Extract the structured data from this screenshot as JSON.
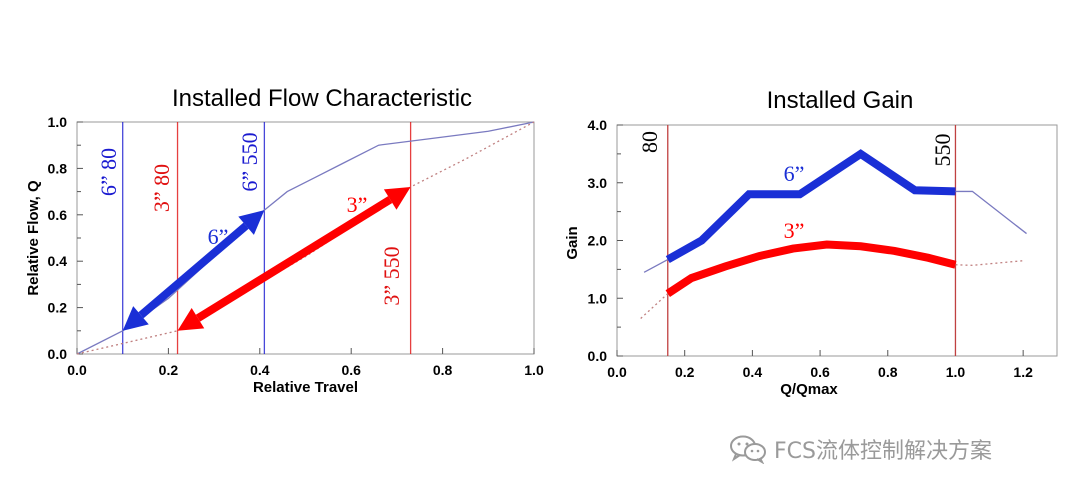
{
  "chart_data": [
    {
      "type": "line",
      "title": "Installed Flow Characteristic",
      "xlabel": "Relative Travel",
      "ylabel": "Relative Flow, Q",
      "xlim": [
        0.0,
        1.0
      ],
      "ylim": [
        0.0,
        1.0
      ],
      "x_ticks": [
        "0.0",
        "0.2",
        "0.4",
        "0.6",
        "0.8",
        "1.0"
      ],
      "y_ticks": [
        "0.0",
        "0.2",
        "0.4",
        "0.6",
        "0.8",
        "1.0"
      ],
      "series": [
        {
          "name": "6”",
          "color": "#7a7ac0",
          "style": "solid",
          "x": [
            0,
            0.1,
            0.2,
            0.3,
            0.41,
            0.46,
            0.52,
            0.58,
            0.66,
            0.78,
            0.9,
            1.0
          ],
          "y": [
            0,
            0.1,
            0.24,
            0.42,
            0.62,
            0.7,
            0.76,
            0.82,
            0.9,
            0.93,
            0.96,
            1.0
          ]
        },
        {
          "name": "3”",
          "color": "#c08080",
          "style": "dotted",
          "x": [
            0,
            0.22,
            0.35,
            0.5,
            0.6,
            0.73,
            0.85,
            1.0
          ],
          "y": [
            0,
            0.1,
            0.25,
            0.42,
            0.55,
            0.72,
            0.84,
            1.0
          ]
        }
      ],
      "vlines": [
        {
          "x": 0.1,
          "label": "6” 80",
          "color": "#1a1ad0",
          "label_pos": "top"
        },
        {
          "x": 0.22,
          "label": "3” 80",
          "color": "#e01010",
          "label_pos": "top"
        },
        {
          "x": 0.41,
          "label": "6” 550",
          "color": "#1a1ad0",
          "label_pos": "top"
        },
        {
          "x": 0.73,
          "label": "3” 550",
          "color": "#e01010",
          "label_pos": "bottom"
        }
      ],
      "operating_range_arrows": [
        {
          "label": "6”",
          "color": "#1a2fd6",
          "from": [
            0.1,
            0.1
          ],
          "to": [
            0.41,
            0.62
          ]
        },
        {
          "label": "3”",
          "color": "#ff0000",
          "from": [
            0.22,
            0.1
          ],
          "to": [
            0.73,
            0.72
          ]
        }
      ]
    },
    {
      "type": "line",
      "title": "Installed Gain",
      "xlabel": "Q/Qmax",
      "ylabel": "Gain",
      "xlim": [
        0.0,
        1.3
      ],
      "ylim": [
        0.0,
        4.0
      ],
      "x_ticks": [
        "0.0",
        "0.2",
        "0.4",
        "0.6",
        "0.8",
        "1.0",
        "1.2"
      ],
      "y_ticks": [
        "0.0",
        "1.0",
        "2.0",
        "3.0",
        "4.0"
      ],
      "series": [
        {
          "name": "6”",
          "color": "#1a2fd6",
          "x": [
            0.15,
            0.25,
            0.39,
            0.54,
            0.72,
            0.88,
            1.0
          ],
          "y": [
            1.67,
            2.0,
            2.8,
            2.8,
            3.5,
            2.87,
            2.85
          ]
        },
        {
          "name": "3”",
          "color": "#ff0000",
          "x": [
            0.15,
            0.22,
            0.32,
            0.42,
            0.52,
            0.62,
            0.72,
            0.82,
            0.92,
            1.0
          ],
          "y": [
            1.08,
            1.35,
            1.55,
            1.73,
            1.86,
            1.93,
            1.9,
            1.82,
            1.7,
            1.58
          ]
        }
      ],
      "extensions": [
        {
          "series": "6”",
          "color": "#7a7ac0",
          "style": "solid",
          "x": [
            0.08,
            0.15
          ],
          "y": [
            1.45,
            1.67
          ]
        },
        {
          "series": "6”",
          "color": "#7a7ac0",
          "style": "solid",
          "x": [
            1.0,
            1.05,
            1.21
          ],
          "y": [
            2.85,
            2.85,
            2.12
          ]
        },
        {
          "series": "3”",
          "color": "#c08080",
          "style": "dotted",
          "x": [
            0.07,
            0.15
          ],
          "y": [
            0.65,
            1.08
          ]
        },
        {
          "series": "3”",
          "color": "#c08080",
          "style": "dotted",
          "x": [
            1.0,
            1.05,
            1.2
          ],
          "y": [
            1.58,
            1.57,
            1.65
          ]
        }
      ],
      "vlines": [
        {
          "x": 0.15,
          "label": "80",
          "color": "#c04040"
        },
        {
          "x": 1.0,
          "label": "550",
          "color": "#c04040"
        }
      ]
    }
  ],
  "watermark": {
    "text": "FCS流体控制解决方案",
    "icon": "wechat-icon",
    "color": "#9a9a9a"
  }
}
